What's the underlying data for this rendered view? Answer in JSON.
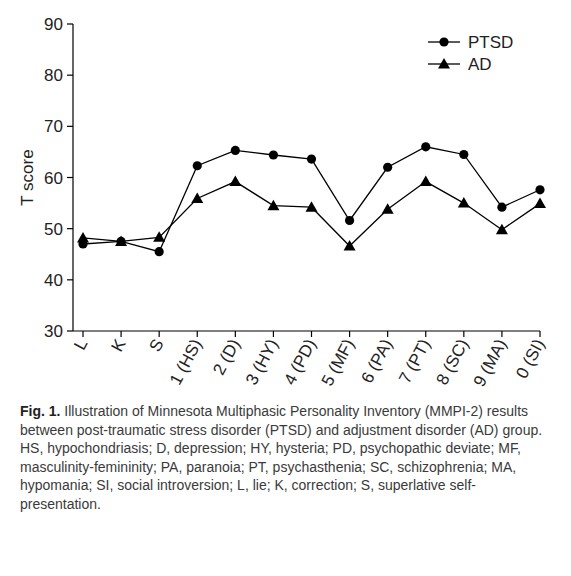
{
  "chart_data": {
    "type": "line",
    "y_label": "T score",
    "categories": [
      "L",
      "K",
      "S",
      "1 (HS)",
      "2 (D)",
      "3 (HY)",
      "4 (PD)",
      "5 (MF)",
      "6 (PA)",
      "7 (PT)",
      "8 (SC)",
      "9 (MA)",
      "0 (SI)"
    ],
    "series": [
      {
        "name": "PTSD",
        "color": "#000000",
        "marker": "circle",
        "line_style": "solid",
        "values": [
          47,
          47.5,
          45.5,
          62.3,
          65.3,
          64.4,
          63.6,
          51.6,
          62.0,
          66.0,
          64.5,
          54.2,
          57.6
        ]
      },
      {
        "name": "AD",
        "color": "#000000",
        "marker": "triangle",
        "line_style": "solid",
        "values": [
          48.2,
          47.5,
          48.3,
          55.9,
          59.2,
          54.5,
          54.2,
          46.6,
          53.8,
          59.2,
          55.0,
          49.8,
          54.9
        ]
      }
    ],
    "ylim": [
      30,
      90
    ],
    "yticks": [
      30,
      40,
      50,
      60,
      70,
      80,
      90
    ],
    "grid": false,
    "legend": "top-right",
    "caption_label": "Fig. 1.",
    "caption": "Illustration of Minnesota Multiphasic Personality Inventory (MMPI-2) results between post-traumatic stress disorder (PTSD) and adjustment disorder (AD) group.",
    "notes": "HS, hypochondriasis; D, depression; HY, hysteria; PD, psychopathic deviate; MF, masculinity-femininity; PA, paranoia; PT, psychasthenia; SC, schizophrenia; MA, hypomania; SI, social introversion; L, lie; K, correction; S, superlative self-presentation."
  }
}
